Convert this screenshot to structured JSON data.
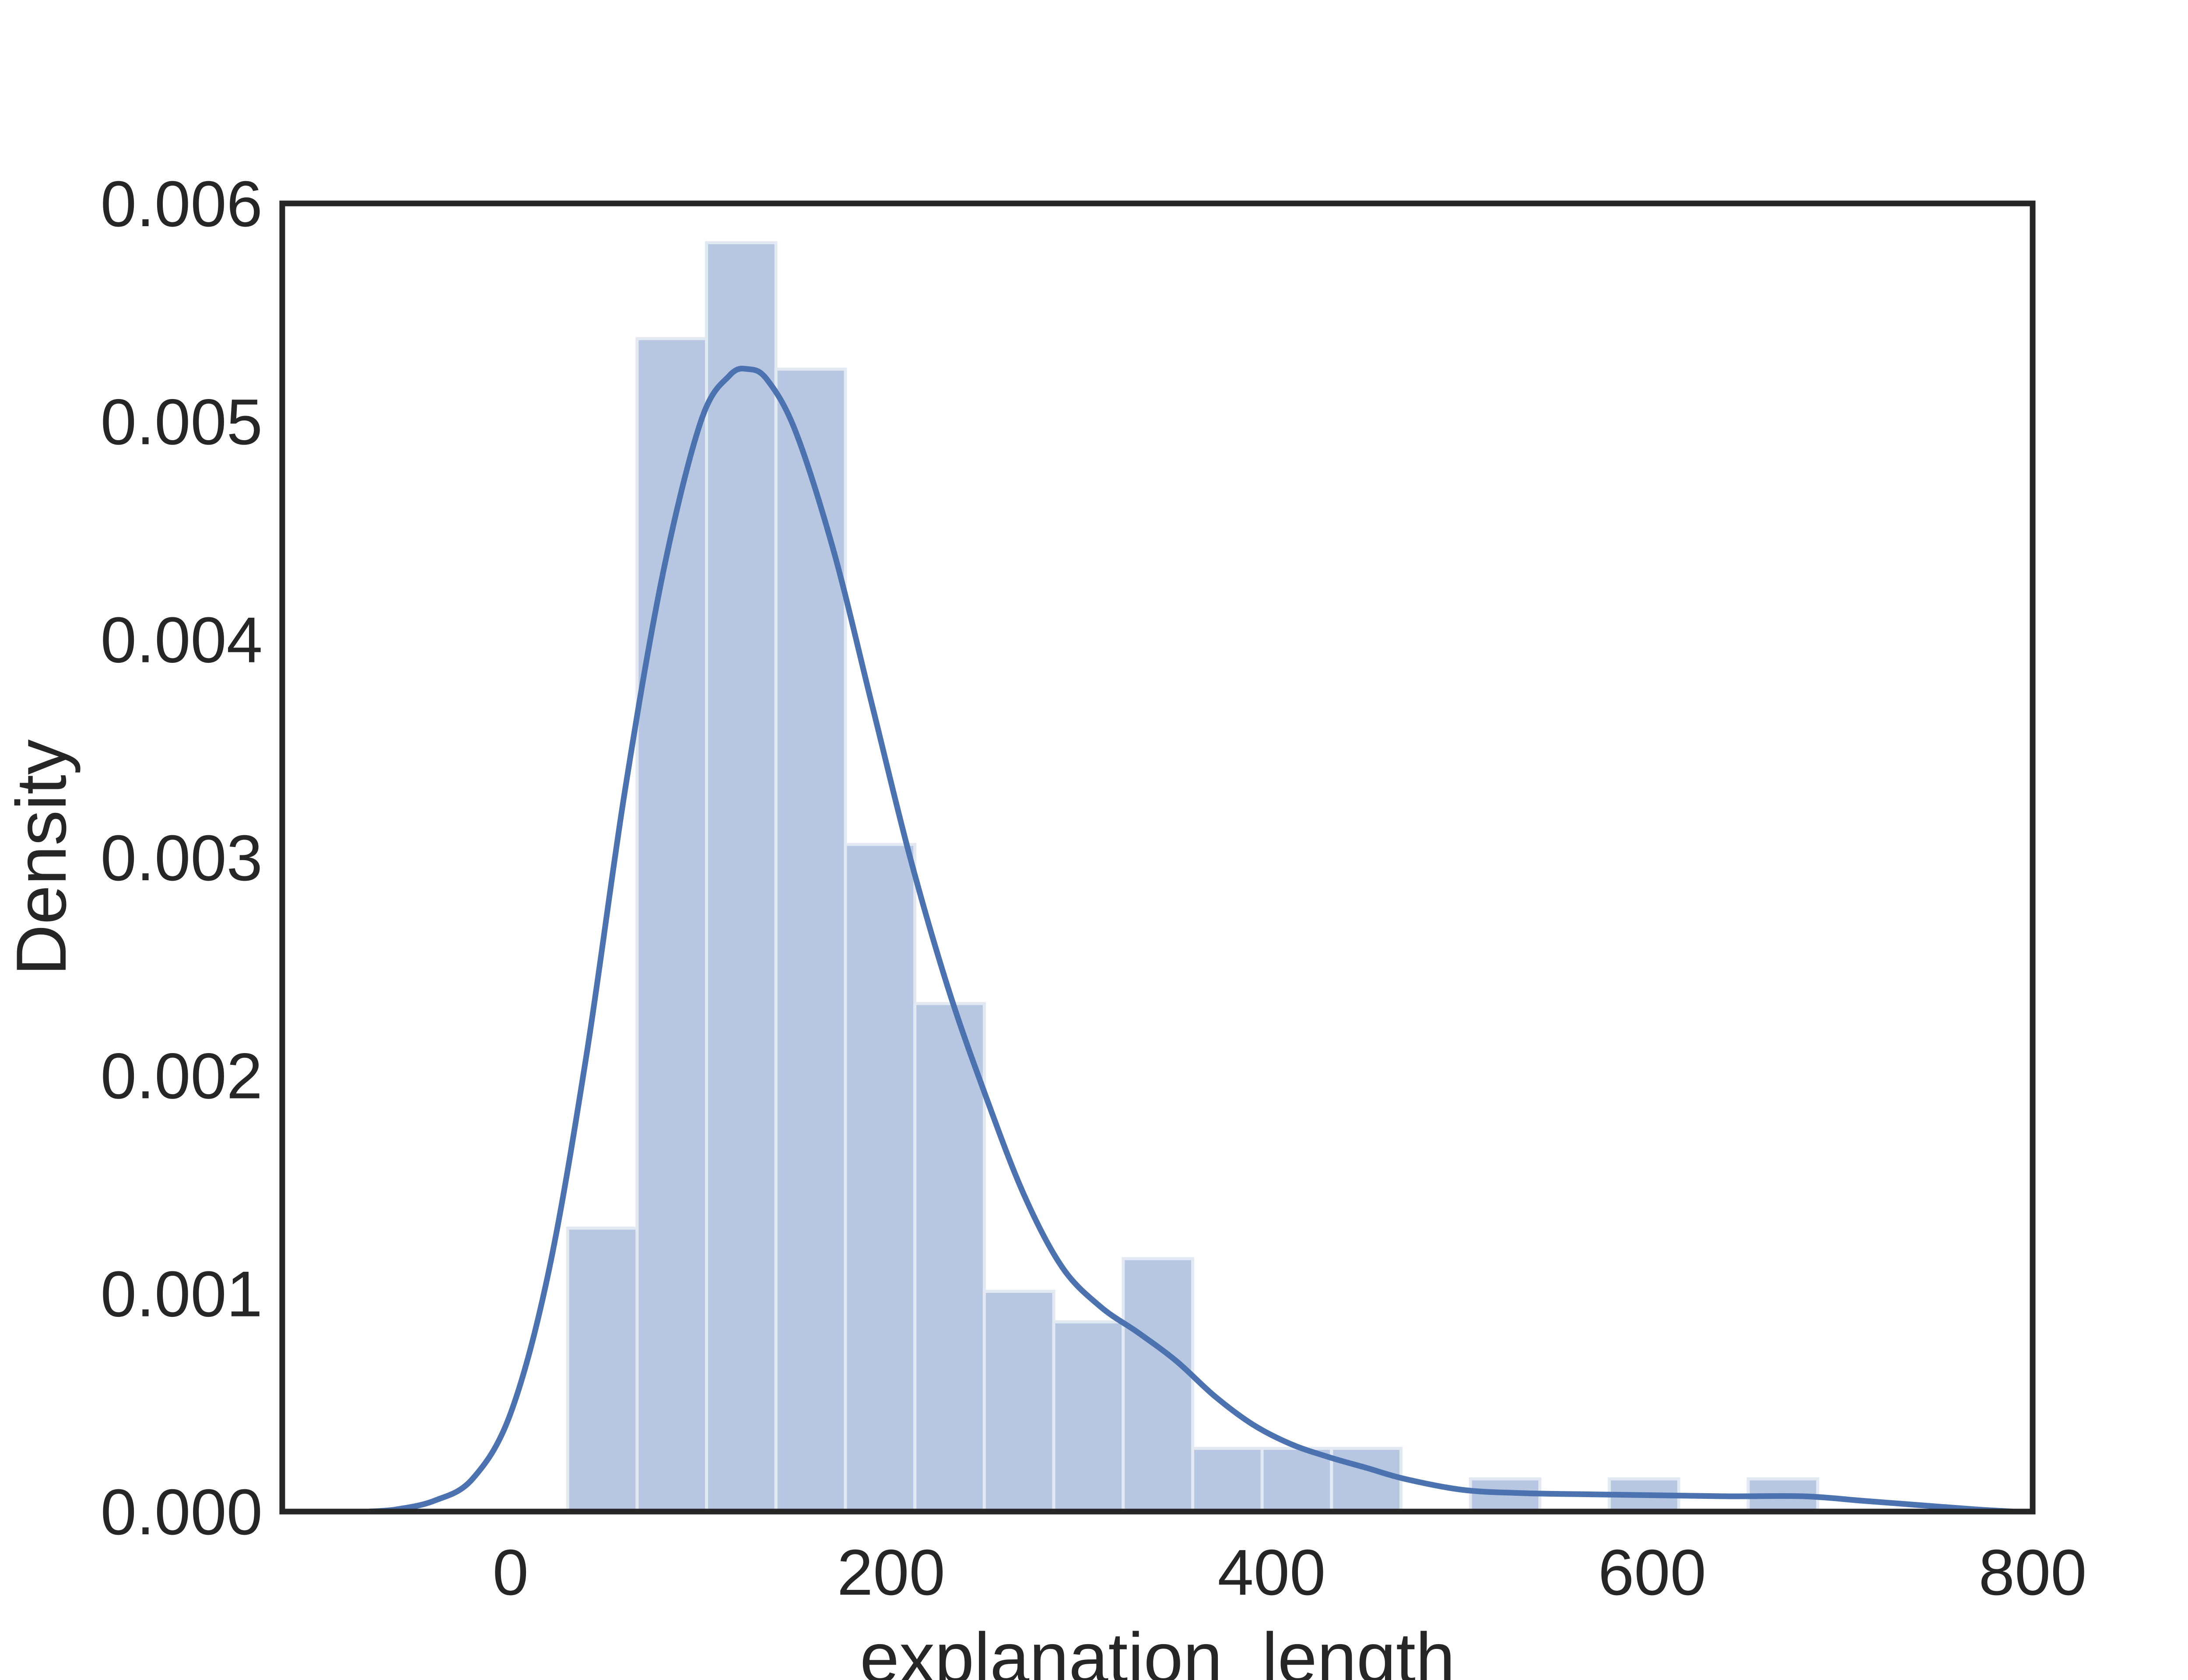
{
  "chart_data": {
    "type": "bar",
    "xlabel": "explanation_length",
    "ylabel": "Density",
    "xlim": [
      -120,
      800
    ],
    "ylim": [
      0,
      0.006
    ],
    "x_ticks": [
      0,
      200,
      400,
      600,
      800
    ],
    "y_ticks": [
      0.0,
      0.001,
      0.002,
      0.003,
      0.004,
      0.005,
      0.006
    ],
    "x_tick_labels": [
      "0",
      "200",
      "400",
      "600",
      "800"
    ],
    "y_tick_labels": [
      "0.000",
      "0.001",
      "0.002",
      "0.003",
      "0.004",
      "0.005",
      "0.006"
    ],
    "grid": false,
    "histogram": {
      "bin_edges": [
        30,
        66.5,
        103,
        139.5,
        176,
        212.5,
        249,
        285.5,
        322,
        358.5,
        395,
        431.5,
        468,
        504.5,
        541,
        577.5,
        614,
        650.5,
        687
      ],
      "density": [
        0.0013,
        0.00538,
        0.00582,
        0.00524,
        0.00306,
        0.00233,
        0.00101,
        0.00087,
        0.00116,
        0.00029,
        0.00029,
        0.00029,
        0.0,
        0.00015,
        0.0,
        0.00015,
        0.0,
        0.00015
      ],
      "color": "#b7c7e1"
    },
    "kde": {
      "x": [
        -75,
        -60,
        -40,
        -20,
        0,
        20,
        40,
        60,
        80,
        100,
        115,
        125,
        135,
        150,
        170,
        190,
        210,
        230,
        250,
        270,
        290,
        310,
        330,
        350,
        370,
        390,
        410,
        430,
        450,
        470,
        500,
        530,
        560,
        600,
        640,
        680,
        710,
        740,
        770,
        790
      ],
      "y": [
        0.0,
        1e-05,
        5e-05,
        0.00015,
        0.00045,
        0.0011,
        0.0021,
        0.0033,
        0.0043,
        0.005,
        0.00521,
        0.00524,
        0.00519,
        0.00495,
        0.0044,
        0.0037,
        0.003,
        0.0024,
        0.0019,
        0.00145,
        0.00112,
        0.00094,
        0.00082,
        0.00069,
        0.00053,
        0.0004,
        0.00031,
        0.00025,
        0.0002,
        0.00015,
        0.0001,
        8.5e-05,
        8e-05,
        7.5e-05,
        7e-05,
        7e-05,
        5e-05,
        3e-05,
        1e-05,
        0.0
      ],
      "color": "#4c72b0"
    }
  }
}
